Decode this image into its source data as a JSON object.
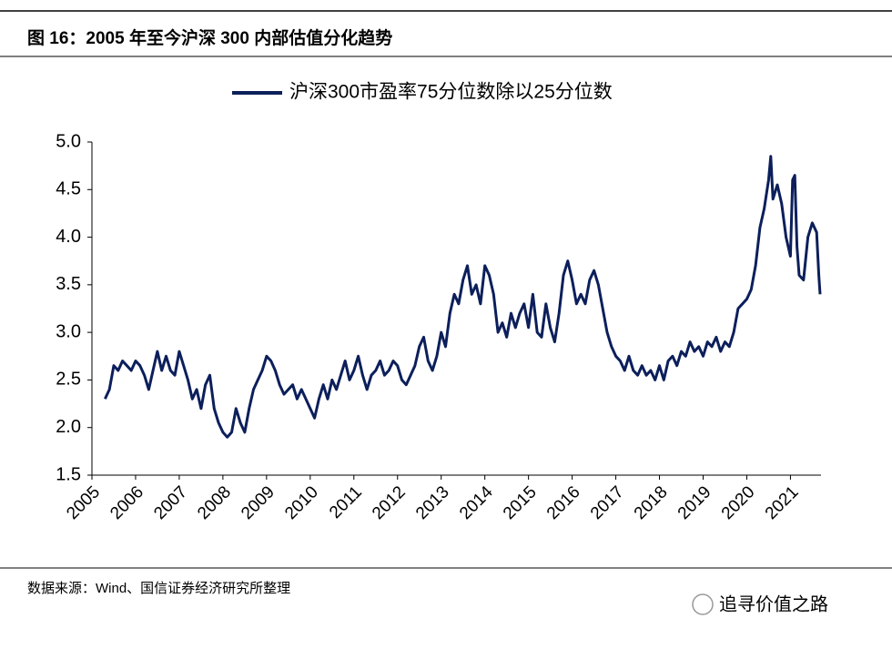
{
  "chart_data": {
    "type": "line",
    "title": "图 16：2005 年至今沪深 300 内部估值分化趋势",
    "source": "数据来源：Wind、国信证券经济研究所整理",
    "legend": "top",
    "xlim": [
      2005,
      2021.7
    ],
    "xticks": [
      2005,
      2006,
      2007,
      2008,
      2009,
      2010,
      2011,
      2012,
      2013,
      2014,
      2015,
      2016,
      2017,
      2018,
      2019,
      2020,
      2021
    ],
    "ylim": [
      1.5,
      5.0
    ],
    "yticks": [
      1.5,
      {
        "value": 2.0,
        "label": "2.0"
      },
      2.5,
      {
        "value": 3.0,
        "label": "3.0"
      },
      3.5,
      {
        "value": 4.0,
        "label": "4.0"
      },
      4.5,
      {
        "value": 5.0,
        "label": "5.0"
      }
    ],
    "grid": false,
    "x": [
      2005.3,
      2005.4,
      2005.5,
      2005.6,
      2005.7,
      2005.8,
      2005.9,
      2006.0,
      2006.1,
      2006.2,
      2006.3,
      2006.4,
      2006.5,
      2006.6,
      2006.7,
      2006.8,
      2006.9,
      2007.0,
      2007.1,
      2007.2,
      2007.3,
      2007.4,
      2007.5,
      2007.6,
      2007.7,
      2007.8,
      2007.9,
      2008.0,
      2008.1,
      2008.2,
      2008.3,
      2008.4,
      2008.5,
      2008.6,
      2008.7,
      2008.8,
      2008.9,
      2009.0,
      2009.1,
      2009.2,
      2009.3,
      2009.4,
      2009.5,
      2009.6,
      2009.7,
      2009.8,
      2009.9,
      2010.0,
      2010.1,
      2010.2,
      2010.3,
      2010.4,
      2010.5,
      2010.6,
      2010.7,
      2010.8,
      2010.9,
      2011.0,
      2011.1,
      2011.2,
      2011.3,
      2011.4,
      2011.5,
      2011.6,
      2011.7,
      2011.8,
      2011.9,
      2012.0,
      2012.1,
      2012.2,
      2012.3,
      2012.4,
      2012.5,
      2012.6,
      2012.7,
      2012.8,
      2012.9,
      2013.0,
      2013.1,
      2013.2,
      2013.3,
      2013.4,
      2013.5,
      2013.6,
      2013.7,
      2013.8,
      2013.9,
      2014.0,
      2014.1,
      2014.2,
      2014.3,
      2014.4,
      2014.5,
      2014.6,
      2014.7,
      2014.8,
      2014.9,
      2015.0,
      2015.1,
      2015.2,
      2015.3,
      2015.4,
      2015.5,
      2015.6,
      2015.7,
      2015.8,
      2015.9,
      2016.0,
      2016.1,
      2016.2,
      2016.3,
      2016.4,
      2016.5,
      2016.6,
      2016.7,
      2016.8,
      2016.9,
      2017.0,
      2017.1,
      2017.2,
      2017.3,
      2017.4,
      2017.5,
      2017.6,
      2017.7,
      2017.8,
      2017.9,
      2018.0,
      2018.1,
      2018.2,
      2018.3,
      2018.4,
      2018.5,
      2018.6,
      2018.7,
      2018.8,
      2018.9,
      2019.0,
      2019.1,
      2019.2,
      2019.3,
      2019.4,
      2019.5,
      2019.6,
      2019.7,
      2019.8,
      2019.9,
      2020.0,
      2020.1,
      2020.2,
      2020.3,
      2020.4,
      2020.5,
      2020.55,
      2020.6,
      2020.7,
      2020.8,
      2020.9,
      2021.0,
      2021.05,
      2021.1,
      2021.15,
      2021.2,
      2021.3,
      2021.4,
      2021.5,
      2021.6,
      2021.65,
      2021.68
    ],
    "series": [
      {
        "name": "沪深300市盈率75分位数除以25分位数",
        "color": "#0c1f5b",
        "values": [
          2.3,
          2.4,
          2.65,
          2.6,
          2.7,
          2.65,
          2.6,
          2.7,
          2.65,
          2.55,
          2.4,
          2.6,
          2.8,
          2.6,
          2.75,
          2.6,
          2.55,
          2.8,
          2.65,
          2.5,
          2.3,
          2.4,
          2.2,
          2.45,
          2.55,
          2.2,
          2.05,
          1.95,
          1.9,
          1.95,
          2.2,
          2.05,
          1.95,
          2.2,
          2.4,
          2.5,
          2.6,
          2.75,
          2.7,
          2.6,
          2.45,
          2.35,
          2.4,
          2.45,
          2.3,
          2.4,
          2.3,
          2.2,
          2.1,
          2.3,
          2.45,
          2.3,
          2.5,
          2.4,
          2.55,
          2.7,
          2.5,
          2.6,
          2.75,
          2.55,
          2.4,
          2.55,
          2.6,
          2.7,
          2.55,
          2.6,
          2.7,
          2.65,
          2.5,
          2.45,
          2.55,
          2.65,
          2.85,
          2.95,
          2.7,
          2.6,
          2.75,
          3.0,
          2.85,
          3.2,
          3.4,
          3.3,
          3.55,
          3.7,
          3.4,
          3.5,
          3.3,
          3.7,
          3.6,
          3.4,
          3.0,
          3.1,
          2.95,
          3.2,
          3.05,
          3.2,
          3.3,
          3.05,
          3.4,
          3.0,
          2.95,
          3.3,
          3.05,
          2.9,
          3.2,
          3.6,
          3.75,
          3.55,
          3.3,
          3.4,
          3.3,
          3.55,
          3.65,
          3.5,
          3.25,
          3.0,
          2.85,
          2.75,
          2.7,
          2.6,
          2.75,
          2.6,
          2.55,
          2.65,
          2.55,
          2.6,
          2.5,
          2.65,
          2.5,
          2.7,
          2.75,
          2.65,
          2.8,
          2.75,
          2.9,
          2.8,
          2.85,
          2.75,
          2.9,
          2.85,
          2.95,
          2.8,
          2.9,
          2.85,
          3.0,
          3.25,
          3.3,
          3.35,
          3.45,
          3.7,
          4.1,
          4.3,
          4.6,
          4.85,
          4.4,
          4.55,
          4.35,
          4.0,
          3.8,
          4.6,
          4.65,
          3.9,
          3.6,
          3.55,
          4.0,
          4.15,
          4.05,
          3.6,
          3.4
        ]
      }
    ]
  },
  "watermark": "追寻价值之路"
}
